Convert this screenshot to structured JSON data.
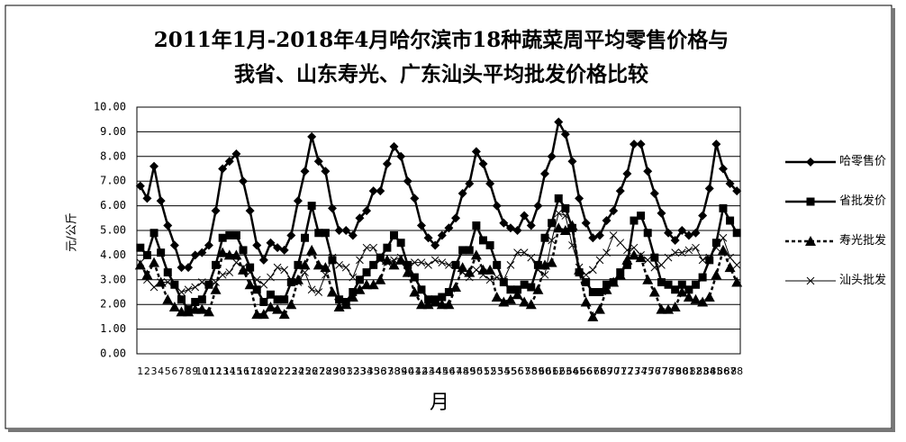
{
  "chart_data": {
    "type": "line",
    "title": [
      "2011年1月-2018年4月哈尔滨市18种蔬菜周平均零售价格与",
      "我省、山东寿光、广东汕头平均批发价格比较"
    ],
    "y_label": "元/公斤",
    "x_label": "月",
    "categories": [
      "1",
      "2",
      "3",
      "4",
      "5",
      "6",
      "7",
      "8",
      "9",
      "10",
      "11",
      "12",
      "13",
      "14",
      "15",
      "16",
      "17",
      "18",
      "19",
      "20",
      "21",
      "22",
      "23",
      "24",
      "25",
      "26",
      "27",
      "28",
      "29",
      "30",
      "31",
      "32",
      "33",
      "34",
      "35",
      "36",
      "37",
      "38",
      "39",
      "40",
      "41",
      "42",
      "43",
      "44",
      "45",
      "46",
      "47",
      "48",
      "49",
      "50",
      "51",
      "52",
      "53",
      "54",
      "55",
      "56",
      "57",
      "58",
      "59",
      "60",
      "61",
      "62",
      "63",
      "64",
      "65",
      "66",
      "67",
      "68",
      "69",
      "70",
      "71",
      "72",
      "73",
      "74",
      "75",
      "76",
      "77",
      "78",
      "79",
      "80",
      "81",
      "82",
      "83",
      "84",
      "85",
      "86",
      "87",
      "88"
    ],
    "ylim": [
      0,
      10
    ],
    "yticks": [
      {
        "value": 0,
        "label": "0.00"
      },
      {
        "value": 1,
        "label": "1.00"
      },
      {
        "value": 2,
        "label": "2.00"
      },
      {
        "value": 3,
        "label": "3.00"
      },
      {
        "value": 4,
        "label": "4.00"
      },
      {
        "value": 5,
        "label": "5.00"
      },
      {
        "value": 6,
        "label": "6.00"
      },
      {
        "value": 7,
        "label": "7.00"
      },
      {
        "value": 8,
        "label": "8.00"
      },
      {
        "value": 9,
        "label": "9.00"
      },
      {
        "value": 10,
        "label": "10.00"
      }
    ],
    "grid": true,
    "series": [
      {
        "name": "哈零售价",
        "color": "#000000",
        "marker": "diamond",
        "dashed": false,
        "values": [
          6.8,
          6.3,
          7.6,
          6.2,
          5.2,
          4.4,
          3.5,
          3.5,
          4.0,
          4.1,
          4.4,
          5.8,
          7.5,
          7.8,
          8.1,
          7.0,
          5.8,
          4.4,
          3.8,
          4.5,
          4.3,
          4.2,
          4.8,
          6.2,
          7.4,
          8.8,
          7.8,
          7.4,
          5.9,
          5.0,
          5.0,
          4.8,
          5.5,
          5.8,
          6.6,
          6.6,
          7.7,
          8.4,
          8.0,
          7.0,
          6.3,
          5.2,
          4.7,
          4.4,
          4.8,
          5.1,
          5.5,
          6.5,
          6.9,
          8.2,
          7.7,
          6.9,
          6.0,
          5.3,
          5.1,
          5.0,
          5.6,
          5.2,
          6.0,
          7.3,
          8.0,
          9.4,
          8.9,
          7.8,
          6.3,
          5.3,
          4.7,
          4.8,
          5.4,
          5.8,
          6.6,
          7.3,
          8.5,
          8.5,
          7.4,
          6.5,
          5.7,
          4.9,
          4.6,
          5.0,
          4.8,
          4.9,
          5.6,
          6.7,
          8.5,
          7.5,
          6.9,
          6.6
        ]
      },
      {
        "name": "省批发价",
        "color": "#000000",
        "marker": "square",
        "dashed": false,
        "values": [
          4.3,
          4.0,
          4.9,
          4.1,
          3.3,
          2.8,
          2.2,
          1.8,
          2.1,
          2.2,
          2.8,
          3.6,
          4.7,
          4.8,
          4.8,
          4.2,
          3.5,
          2.6,
          2.1,
          2.4,
          2.2,
          2.2,
          2.9,
          3.6,
          4.7,
          6.0,
          4.9,
          4.9,
          3.8,
          2.2,
          2.1,
          2.5,
          3.0,
          3.3,
          3.6,
          3.9,
          4.3,
          4.8,
          4.5,
          3.6,
          3.1,
          2.6,
          2.2,
          2.2,
          2.3,
          2.5,
          3.6,
          4.2,
          4.2,
          5.2,
          4.6,
          4.4,
          3.6,
          2.9,
          2.6,
          2.6,
          2.8,
          2.7,
          3.6,
          4.7,
          5.3,
          6.3,
          5.9,
          5.1,
          3.3,
          2.9,
          2.5,
          2.5,
          2.8,
          2.9,
          3.3,
          3.6,
          5.4,
          5.6,
          4.9,
          3.9,
          2.9,
          2.8,
          2.6,
          2.8,
          2.6,
          2.8,
          3.1,
          3.8,
          4.5,
          5.9,
          5.4,
          4.9
        ]
      },
      {
        "name": "寿光批发",
        "color": "#000000",
        "marker": "triangle",
        "dashed": true,
        "values": [
          3.6,
          3.2,
          3.7,
          2.9,
          2.2,
          1.9,
          1.7,
          1.7,
          1.8,
          1.8,
          1.7,
          2.6,
          4.1,
          4.0,
          4.0,
          3.4,
          2.8,
          1.6,
          1.6,
          1.9,
          1.8,
          1.6,
          2.0,
          3.0,
          3.6,
          4.2,
          3.6,
          3.5,
          2.5,
          1.9,
          2.0,
          2.3,
          2.6,
          2.8,
          2.8,
          3.0,
          3.8,
          3.6,
          3.8,
          3.3,
          2.5,
          2.0,
          2.0,
          2.1,
          2.0,
          2.0,
          2.7,
          3.5,
          3.3,
          4.0,
          3.4,
          3.4,
          2.3,
          2.1,
          2.2,
          2.4,
          2.1,
          2.0,
          2.6,
          3.6,
          3.7,
          5.1,
          5.0,
          5.2,
          3.4,
          2.1,
          1.5,
          1.8,
          2.6,
          2.9,
          3.2,
          3.8,
          4.0,
          3.9,
          3.0,
          2.5,
          1.8,
          1.8,
          1.9,
          2.5,
          2.3,
          2.2,
          2.1,
          2.3,
          3.2,
          4.2,
          3.5,
          2.9
        ]
      },
      {
        "name": "汕头批发",
        "color": "#000000",
        "marker": "cross",
        "dashed": false,
        "values": [
          3.7,
          3.0,
          2.7,
          2.9,
          2.9,
          2.8,
          2.5,
          2.6,
          2.7,
          2.9,
          2.8,
          2.9,
          3.2,
          3.3,
          3.7,
          3.5,
          3.3,
          3.0,
          2.8,
          3.1,
          3.5,
          3.4,
          3.0,
          2.9,
          3.3,
          2.6,
          2.5,
          3.2,
          3.9,
          3.6,
          3.5,
          3.1,
          3.8,
          4.3,
          4.3,
          3.8,
          3.7,
          3.8,
          3.9,
          3.6,
          3.7,
          3.7,
          3.6,
          3.8,
          3.7,
          3.6,
          3.6,
          3.3,
          3.1,
          3.4,
          3.2,
          3.0,
          3.1,
          3.0,
          3.6,
          4.1,
          4.1,
          3.9,
          3.4,
          3.2,
          4.6,
          5.7,
          5.6,
          4.4,
          3.5,
          3.2,
          3.4,
          3.8,
          4.1,
          4.8,
          4.5,
          4.2,
          4.3,
          4.0,
          3.8,
          3.5,
          3.6,
          3.9,
          4.1,
          4.1,
          4.2,
          4.3,
          3.8,
          3.9,
          4.3,
          4.7,
          3.9,
          3.6
        ]
      }
    ]
  }
}
